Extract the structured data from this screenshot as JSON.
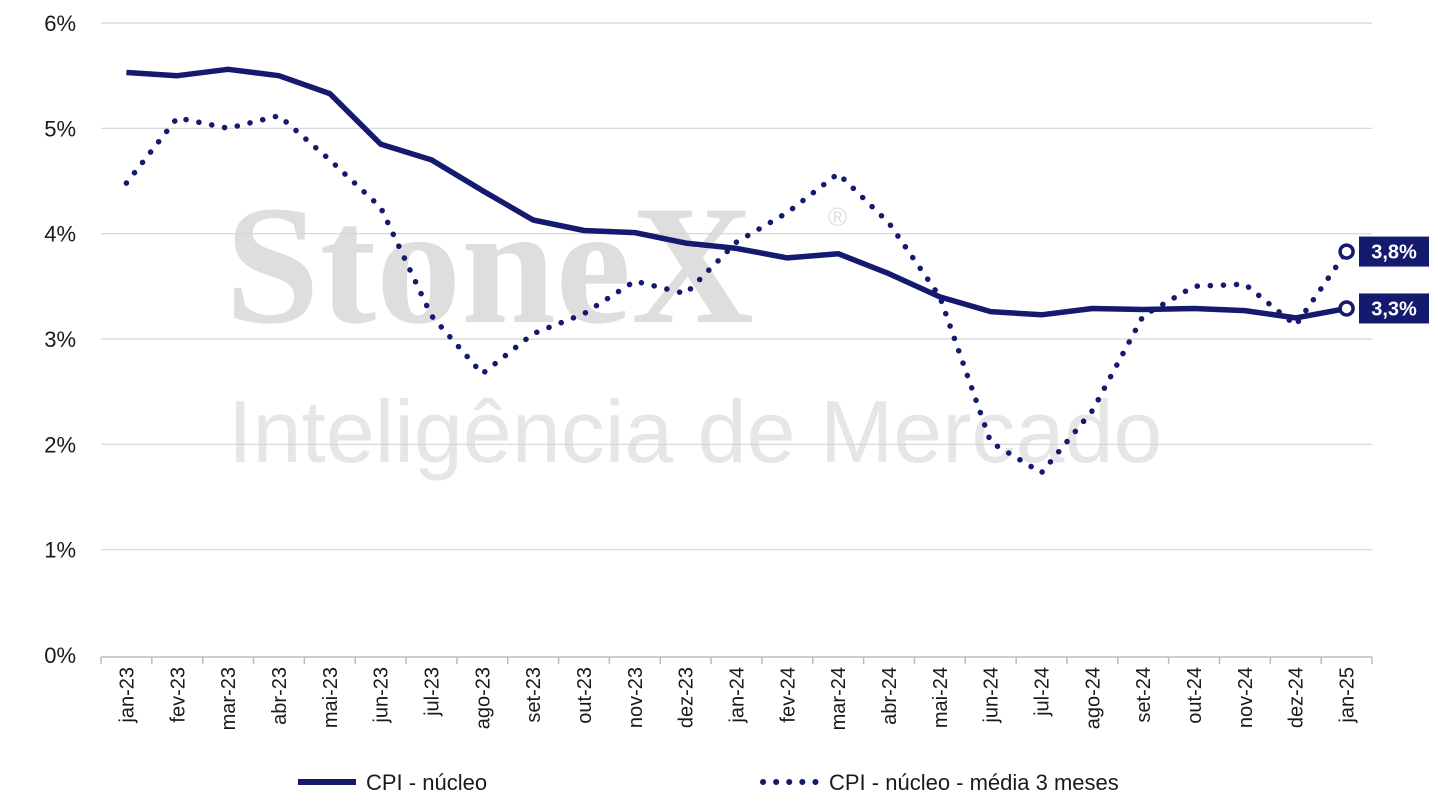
{
  "watermark": {
    "brand": "StoneX",
    "registered": "®",
    "subtitle": "Inteligência de Mercado"
  },
  "chart_data": {
    "type": "line",
    "categories": [
      "jan-23",
      "fev-23",
      "mar-23",
      "abr-23",
      "mai-23",
      "jun-23",
      "jul-23",
      "ago-23",
      "set-23",
      "out-23",
      "nov-23",
      "dez-23",
      "jan-24",
      "fev-24",
      "mar-24",
      "abr-24",
      "mai-24",
      "jun-24",
      "jul-24",
      "ago-24",
      "set-24",
      "out-24",
      "nov-24",
      "dez-24",
      "jan-25"
    ],
    "series": [
      {
        "name": "CPI - núcleo",
        "style": "solid",
        "color": "#141a6e",
        "values": [
          5.53,
          5.5,
          5.56,
          5.5,
          5.33,
          4.85,
          4.7,
          4.41,
          4.13,
          4.03,
          4.01,
          3.91,
          3.86,
          3.77,
          3.81,
          3.62,
          3.4,
          3.26,
          3.23,
          3.29,
          3.28,
          3.29,
          3.27,
          3.2,
          3.29
        ],
        "end_label": "3,3%"
      },
      {
        "name": "CPI - núcleo - média 3 meses",
        "style": "dotted",
        "color": "#141a6e",
        "values": [
          4.48,
          5.1,
          5.0,
          5.12,
          4.7,
          4.25,
          3.22,
          2.67,
          3.05,
          3.24,
          3.55,
          3.43,
          3.92,
          4.2,
          4.57,
          4.1,
          3.4,
          2.02,
          1.73,
          2.32,
          3.22,
          3.5,
          3.52,
          3.13,
          3.83
        ],
        "end_label": "3,8%"
      }
    ],
    "y_ticks": [
      "0%",
      "1%",
      "2%",
      "3%",
      "4%",
      "5%",
      "6%"
    ],
    "ylim": [
      0,
      6
    ],
    "grid": true,
    "legend_position": "bottom"
  }
}
